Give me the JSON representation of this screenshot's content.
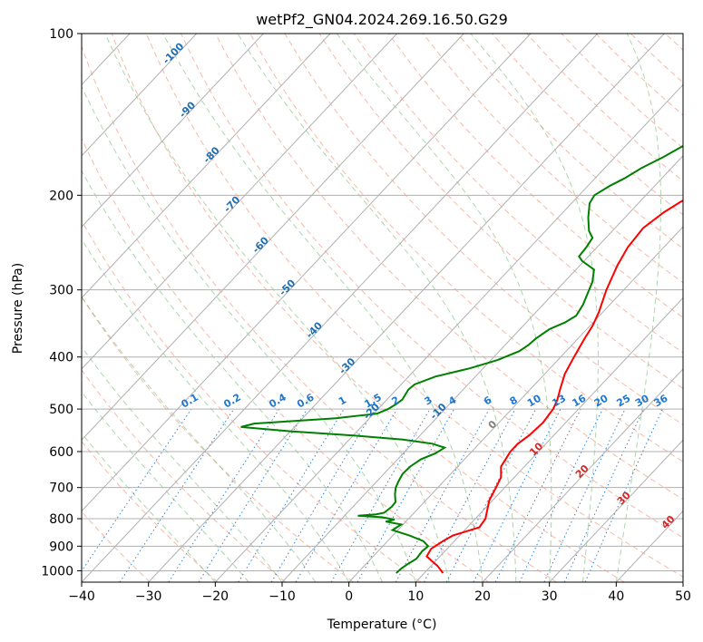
{
  "chart_data": {
    "type": "line",
    "title": "wetPf2_GN04.2024.269.16.50.G29",
    "xlabel": "Temperature (°C)",
    "ylabel": "Pressure (hPa)",
    "xlim": [
      -40,
      50
    ],
    "ylim": [
      1050,
      100
    ],
    "y_scale": "log",
    "x_ticks": [
      -40,
      -30,
      -20,
      -10,
      0,
      10,
      20,
      30,
      40,
      50
    ],
    "y_ticks": [
      100,
      200,
      300,
      400,
      500,
      600,
      700,
      800,
      900,
      1000
    ],
    "grid": true,
    "background_lines": {
      "dry_adiabats_color": "#f08060",
      "moist_adiabats_color": "#6ab46a",
      "mixing_ratio_color": "#1f77d0",
      "isotherm_label_color": "#1f6fb4",
      "mixing_ratio_labels": [
        "0.1",
        "0.2",
        "0.4",
        "0.6",
        "1",
        "1.5",
        "2",
        "3",
        "4",
        "6",
        "8",
        "10",
        "13",
        "16",
        "20",
        "25",
        "30",
        "36"
      ],
      "isotherm_labels": [
        "-100",
        "-90",
        "-80",
        "-70",
        "-60",
        "-50",
        "-40",
        "-30",
        "-20",
        "-10"
      ],
      "red_labels": [
        "0",
        "10",
        "20",
        "30",
        "40"
      ]
    },
    "series": [
      {
        "color": "#ff0000",
        "points": [
          [
            12.8,
            1010
          ],
          [
            11,
            980
          ],
          [
            9.5,
            960
          ],
          [
            8,
            940
          ],
          [
            7.6,
            910
          ],
          [
            8.3,
            880
          ],
          [
            9,
            860
          ],
          [
            11.8,
            830
          ],
          [
            11.5,
            800
          ],
          [
            9.5,
            740
          ],
          [
            8.7,
            700
          ],
          [
            8,
            670
          ],
          [
            6.5,
            640
          ],
          [
            5.8,
            600
          ],
          [
            5.8,
            580
          ],
          [
            6.3,
            560
          ],
          [
            6.6,
            530
          ],
          [
            6.2,
            500
          ],
          [
            5.5,
            480
          ],
          [
            4.5,
            460
          ],
          [
            3,
            430
          ],
          [
            2,
            400
          ],
          [
            1,
            370
          ],
          [
            0.4,
            350
          ],
          [
            -0.6,
            330
          ],
          [
            -2.6,
            300
          ],
          [
            -4.4,
            270
          ],
          [
            -5.4,
            250
          ],
          [
            -5.8,
            230
          ],
          [
            -4.9,
            215
          ],
          [
            -3.9,
            206
          ],
          [
            -2,
            193
          ],
          [
            -0.1,
            180
          ],
          [
            1.5,
            170
          ],
          [
            3.2,
            160
          ],
          [
            5,
            150
          ],
          [
            7,
            140
          ],
          [
            9.6,
            130
          ],
          [
            12,
            120
          ],
          [
            15.2,
            110
          ],
          [
            17.2,
            104
          ],
          [
            18.6,
            100
          ]
        ]
      },
      {
        "color": "#008000",
        "points": [
          [
            5.8,
            1010
          ],
          [
            5.9,
            990
          ],
          [
            6.3,
            970
          ],
          [
            6.8,
            950
          ],
          [
            6.6,
            920
          ],
          [
            6.8,
            900
          ],
          [
            5.3,
            880
          ],
          [
            2.5,
            860
          ],
          [
            -0.8,
            840
          ],
          [
            -0.3,
            820
          ],
          [
            -3,
            810
          ],
          [
            -2,
            803
          ],
          [
            -4.2,
            795
          ],
          [
            -8,
            790
          ],
          [
            -5.5,
            785
          ],
          [
            -4.5,
            780
          ],
          [
            -4.2,
            760
          ],
          [
            -4.3,
            745
          ],
          [
            -5.5,
            720
          ],
          [
            -6.3,
            700
          ],
          [
            -6.8,
            680
          ],
          [
            -7.2,
            660
          ],
          [
            -7.1,
            640
          ],
          [
            -6.5,
            620
          ],
          [
            -5.2,
            605
          ],
          [
            -4.6,
            590
          ],
          [
            -7,
            580
          ],
          [
            -12,
            570
          ],
          [
            -20,
            560
          ],
          [
            -30,
            550
          ],
          [
            -38,
            540
          ],
          [
            -36.5,
            532
          ],
          [
            -25,
            520
          ],
          [
            -19.5,
            510
          ],
          [
            -18.5,
            500
          ],
          [
            -18,
            490
          ],
          [
            -17.7,
            480
          ],
          [
            -18.2,
            460
          ],
          [
            -18,
            450
          ],
          [
            -16,
            435
          ],
          [
            -12,
            420
          ],
          [
            -9,
            405
          ],
          [
            -7,
            390
          ],
          [
            -6.5,
            380
          ],
          [
            -6.3,
            370
          ],
          [
            -5.6,
            355
          ],
          [
            -4.2,
            345
          ],
          [
            -3.5,
            335
          ],
          [
            -4,
            320
          ],
          [
            -5.8,
            290
          ],
          [
            -7.3,
            275
          ],
          [
            -10.3,
            265
          ],
          [
            -11.4,
            260
          ],
          [
            -11.6,
            250
          ],
          [
            -12,
            240
          ],
          [
            -13.5,
            233
          ],
          [
            -15.5,
            220
          ],
          [
            -17.3,
            207
          ],
          [
            -17.7,
            200
          ],
          [
            -16.7,
            192
          ],
          [
            -15.6,
            186
          ],
          [
            -14.5,
            178
          ],
          [
            -12.8,
            170
          ],
          [
            -11.4,
            162
          ],
          [
            -10.6,
            155
          ],
          [
            -10.4,
            150
          ],
          [
            -10.3,
            145
          ],
          [
            -9.5,
            138
          ],
          [
            -8,
            131
          ],
          [
            -6.5,
            125
          ],
          [
            -5.2,
            118
          ],
          [
            -3.5,
            110
          ],
          [
            -2.4,
            103
          ],
          [
            -1.7,
            100
          ]
        ]
      }
    ]
  }
}
